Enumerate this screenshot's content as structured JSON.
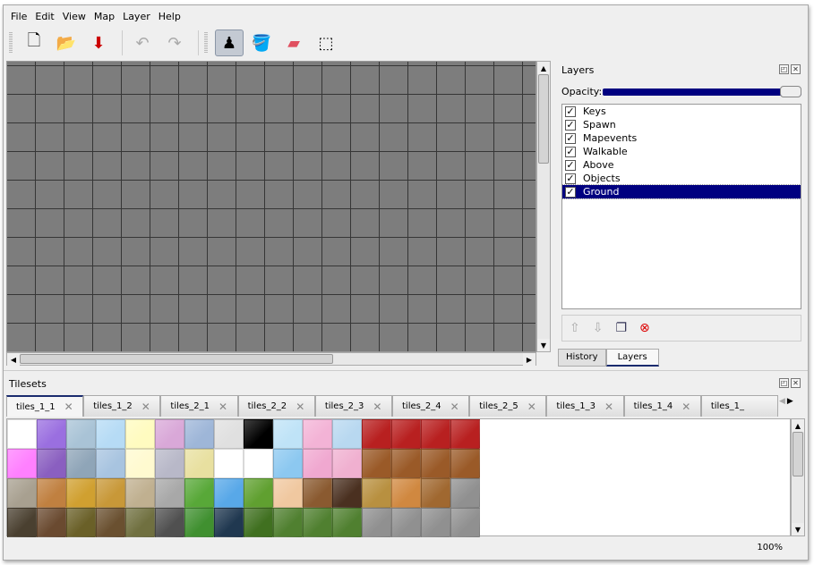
{
  "menu": [
    "File",
    "Edit",
    "View",
    "Map",
    "Layer",
    "Help"
  ],
  "toolbar": [
    {
      "name": "new-map-icon",
      "glyph": "🗋"
    },
    {
      "name": "open-icon",
      "glyph": "📂"
    },
    {
      "name": "save-icon",
      "glyph": "⬇"
    },
    {
      "name": "undo-icon",
      "glyph": "↶"
    },
    {
      "name": "redo-icon",
      "glyph": "↷"
    },
    {
      "name": "stamp-brush-icon",
      "glyph": "♟",
      "active": true
    },
    {
      "name": "bucket-fill-icon",
      "glyph": "🪣"
    },
    {
      "name": "eraser-icon",
      "glyph": "▰"
    },
    {
      "name": "rectangle-select-icon",
      "glyph": "⬚"
    }
  ],
  "layers_panel": {
    "title": "Layers",
    "opacity_label": "Opacity:",
    "opacity": 1.0,
    "layers": [
      {
        "name": "Keys",
        "visible": true
      },
      {
        "name": "Spawn",
        "visible": true
      },
      {
        "name": "Mapevents",
        "visible": true
      },
      {
        "name": "Walkable",
        "visible": true
      },
      {
        "name": "Above",
        "visible": true
      },
      {
        "name": "Objects",
        "visible": true
      },
      {
        "name": "Ground",
        "visible": true,
        "selected": true
      }
    ],
    "tabs": [
      "History",
      "Layers"
    ],
    "active_tab": "Layers"
  },
  "tilesets_panel": {
    "title": "Tilesets",
    "tabs": [
      "tiles_1_1",
      "tiles_1_2",
      "tiles_2_1",
      "tiles_2_2",
      "tiles_2_3",
      "tiles_2_4",
      "tiles_2_5",
      "tiles_1_3",
      "tiles_1_4",
      "tiles_1_"
    ],
    "active_tab": "tiles_1_1",
    "tile_colors": [
      [
        "#ffffff",
        "#9a6fe0",
        "#a9c3d6",
        "#b6dbf5",
        "#fffbc0",
        "#d9a8d8",
        "#9eb6d8",
        "#e0e0e0",
        "#000000",
        "#bfe3f7",
        "#f3b3d6",
        "#b8d8f0",
        "#b82020",
        "#b82020",
        "#b82020",
        "#b82020"
      ],
      [
        "#ff80ff",
        "#8a5fc0",
        "#8fa5b8",
        "#a8c4e0",
        "#fffad0",
        "#b8b8c8",
        "#e8e0a0",
        "#ffffff",
        "#ffffff",
        "#8cc8f0",
        "#f0a8d0",
        "#f0b0d0",
        "#9a5a28",
        "#9a5a28",
        "#9a5a28",
        "#9a5a28"
      ],
      [
        "#a8a090",
        "#c08040",
        "#d0a030",
        "#c89838",
        "#c0b090",
        "#a8a8a8",
        "#58a838",
        "#58a8e8",
        "#60a030",
        "#f0c8a0",
        "#8a5a30",
        "#4a3020",
        "#b89040",
        "#d08840",
        "#a06830",
        "#909090"
      ],
      [
        "#4a4030",
        "#6a4a30",
        "#6a6028",
        "#6a5030",
        "#707040",
        "#505050",
        "#409030",
        "#203850",
        "#407020",
        "#508030",
        "#508030",
        "#508030",
        "#909090",
        "#909090",
        "#909090",
        "#909090"
      ]
    ]
  },
  "status": {
    "zoom": "100%"
  }
}
